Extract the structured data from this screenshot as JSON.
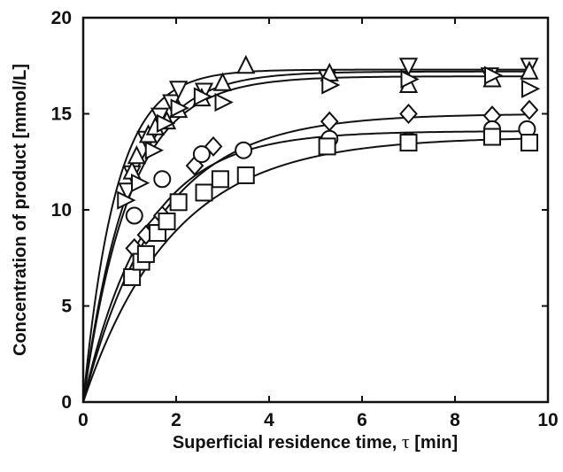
{
  "chart_data": {
    "type": "scatter",
    "title": "",
    "xlabel": "Superficial residence time,",
    "xlabel_symbol": "τ",
    "xlabel_unit": "[min]",
    "ylabel": "Concentration of product [mmol/L]",
    "xlim": [
      0,
      10
    ],
    "ylim": [
      0,
      20
    ],
    "xticks": [
      "0",
      "2",
      "4",
      "6",
      "8",
      "10"
    ],
    "yticks": [
      "0",
      "5",
      "10",
      "15",
      "20"
    ],
    "grid": false,
    "legend": "none",
    "marker_color": "#111111",
    "series": [
      {
        "marker": "triangle-down",
        "fit": {
          "cmax": 17.3,
          "k": 1.42
        },
        "points": [
          [
            0.95,
            11.0
          ],
          [
            1.05,
            11.9
          ],
          [
            1.35,
            13.7
          ],
          [
            1.65,
            14.9
          ],
          [
            1.9,
            15.6
          ],
          [
            2.05,
            16.3
          ],
          [
            2.6,
            16.2
          ],
          [
            5.25,
            16.9
          ],
          [
            7.0,
            17.5
          ],
          [
            8.75,
            17.0
          ],
          [
            9.6,
            17.5
          ]
        ]
      },
      {
        "marker": "triangle-up",
        "fit": {
          "cmax": 17.2,
          "k": 1.05
        },
        "points": [
          [
            1.05,
            12.0
          ],
          [
            1.15,
            12.8
          ],
          [
            1.4,
            13.9
          ],
          [
            1.55,
            14.3
          ],
          [
            1.8,
            14.6
          ],
          [
            2.05,
            15.2
          ],
          [
            2.55,
            15.8
          ],
          [
            3.0,
            16.6
          ],
          [
            3.5,
            17.5
          ],
          [
            5.3,
            17.1
          ],
          [
            7.0,
            16.5
          ],
          [
            8.8,
            16.8
          ],
          [
            9.6,
            17.2
          ]
        ]
      },
      {
        "marker": "triangle-right",
        "fit": {
          "cmax": 16.95,
          "k": 1.0
        },
        "points": [
          [
            0.9,
            10.5
          ],
          [
            1.2,
            11.4
          ],
          [
            1.5,
            13.1
          ],
          [
            1.75,
            14.5
          ],
          [
            2.05,
            15.3
          ],
          [
            2.55,
            15.9
          ],
          [
            3.0,
            15.6
          ],
          [
            5.3,
            16.5
          ],
          [
            7.0,
            16.8
          ],
          [
            8.8,
            17.0
          ],
          [
            9.6,
            16.3
          ]
        ]
      },
      {
        "marker": "diamond",
        "fit": {
          "cmax": 15.0,
          "k": 0.62
        },
        "points": [
          [
            1.1,
            8.0
          ],
          [
            1.35,
            8.7
          ],
          [
            1.55,
            9.2
          ],
          [
            1.7,
            9.7
          ],
          [
            2.4,
            12.3
          ],
          [
            2.8,
            13.3
          ],
          [
            5.3,
            14.6
          ],
          [
            7.0,
            15.0
          ],
          [
            8.8,
            14.9
          ],
          [
            9.6,
            15.2
          ]
        ]
      },
      {
        "marker": "circle",
        "fit": {
          "cmax": 14.1,
          "k": 0.75
        },
        "points": [
          [
            1.1,
            9.7
          ],
          [
            1.7,
            11.6
          ],
          [
            2.55,
            12.9
          ],
          [
            3.45,
            13.1
          ],
          [
            5.3,
            13.7
          ],
          [
            7.0,
            13.6
          ],
          [
            8.8,
            14.2
          ],
          [
            9.55,
            14.2
          ]
        ]
      },
      {
        "marker": "square",
        "fit": {
          "cmax": 13.8,
          "k": 0.52
        },
        "points": [
          [
            1.05,
            6.5
          ],
          [
            1.25,
            7.3
          ],
          [
            1.35,
            7.7
          ],
          [
            1.6,
            8.8
          ],
          [
            1.8,
            9.4
          ],
          [
            2.05,
            10.4
          ],
          [
            2.6,
            10.9
          ],
          [
            2.95,
            11.6
          ],
          [
            3.5,
            11.8
          ],
          [
            5.25,
            13.3
          ],
          [
            7.0,
            13.5
          ],
          [
            8.8,
            13.8
          ],
          [
            9.6,
            13.5
          ]
        ]
      }
    ]
  }
}
